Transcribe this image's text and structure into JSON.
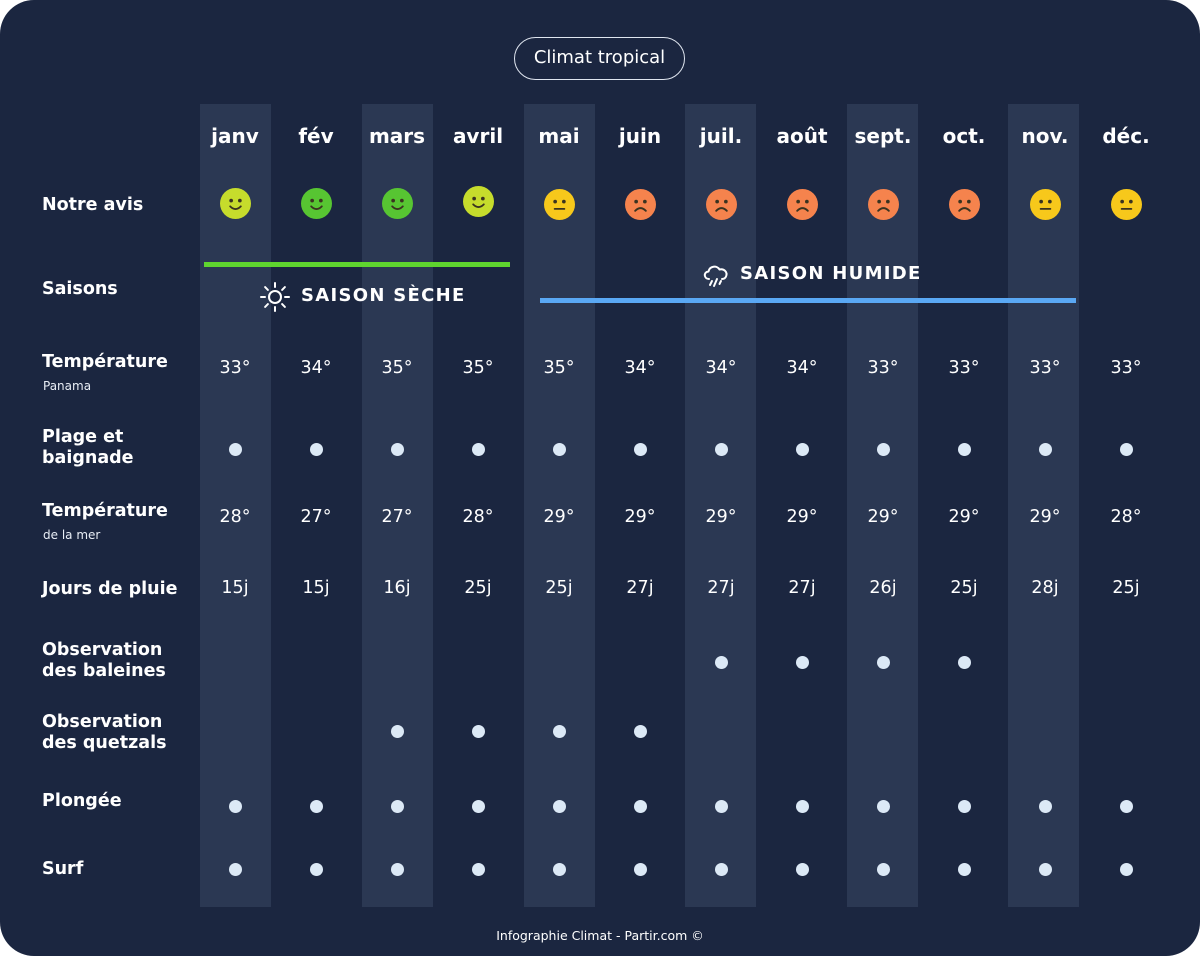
{
  "title": "Climat tropical",
  "footer": "Infographie Climat - Partir.com ©",
  "colors": {
    "background": "#1b2640",
    "band": "#2b3853",
    "dot": "#dce9f6",
    "dry_season_line": "#5fd52f",
    "wet_season_line": "#5aa8f4",
    "face_happy_yellow_green": "#c6dc2c",
    "face_happy_green": "#57c532",
    "face_neutral": "#f7c81b",
    "face_sad": "#f5834d"
  },
  "rows": {
    "avis": "Notre avis",
    "saisons": "Saisons",
    "temp": "Température",
    "temp_sub": "Panama",
    "plage_1": "Plage et",
    "plage_2": "baignade",
    "mer": "Température",
    "mer_sub": "de la mer",
    "pluie": "Jours de pluie",
    "baleines_1": "Observation",
    "baleines_2": "des baleines",
    "quetzals_1": "Observation",
    "quetzals_2": "des quetzals",
    "plongee": "Plongée",
    "surf": "Surf"
  },
  "seasons": {
    "dry": {
      "label": "SAISON SÈCHE",
      "icon": "sun-icon",
      "months": [
        "janv",
        "fév",
        "mars",
        "avril"
      ]
    },
    "wet": {
      "label": "SAISON HUMIDE",
      "icon": "rain-cloud-icon",
      "months": [
        "mai",
        "juin",
        "juil.",
        "août",
        "sept.",
        "oct.",
        "nov."
      ]
    }
  },
  "chart_data": {
    "type": "table",
    "title": "Climat tropical",
    "months": [
      "janv",
      "fév",
      "mars",
      "avril",
      "mai",
      "juin",
      "juil.",
      "août",
      "sept.",
      "oct.",
      "nov.",
      "déc."
    ],
    "avis": [
      "happy",
      "happy",
      "happy",
      "happy",
      "neutral",
      "sad",
      "sad",
      "sad",
      "sad",
      "sad",
      "neutral",
      "neutral"
    ],
    "avis_colors": [
      "#c6dc2c",
      "#57c532",
      "#57c532",
      "#c6dc2c",
      "#f7c81b",
      "#f5834d",
      "#f5834d",
      "#f5834d",
      "#f5834d",
      "#f5834d",
      "#f7c81b",
      "#f7c81b"
    ],
    "temperature": [
      "33°",
      "34°",
      "35°",
      "35°",
      "35°",
      "34°",
      "34°",
      "34°",
      "33°",
      "33°",
      "33°",
      "33°"
    ],
    "plage": [
      true,
      true,
      true,
      true,
      true,
      true,
      true,
      true,
      true,
      true,
      true,
      true
    ],
    "temperature_mer": [
      "28°",
      "27°",
      "27°",
      "28°",
      "29°",
      "29°",
      "29°",
      "29°",
      "29°",
      "29°",
      "29°",
      "28°"
    ],
    "jours_pluie": [
      "15j",
      "15j",
      "16j",
      "25j",
      "25j",
      "27j",
      "27j",
      "27j",
      "26j",
      "25j",
      "28j",
      "25j"
    ],
    "baleines": [
      false,
      false,
      false,
      false,
      false,
      false,
      true,
      true,
      true,
      true,
      false,
      false
    ],
    "quetzals": [
      false,
      false,
      true,
      true,
      true,
      true,
      false,
      false,
      false,
      false,
      false,
      false
    ],
    "plongee": [
      true,
      true,
      true,
      true,
      true,
      true,
      true,
      true,
      true,
      true,
      true,
      true
    ],
    "surf": [
      true,
      true,
      true,
      true,
      true,
      true,
      true,
      true,
      true,
      true,
      true,
      true
    ]
  }
}
